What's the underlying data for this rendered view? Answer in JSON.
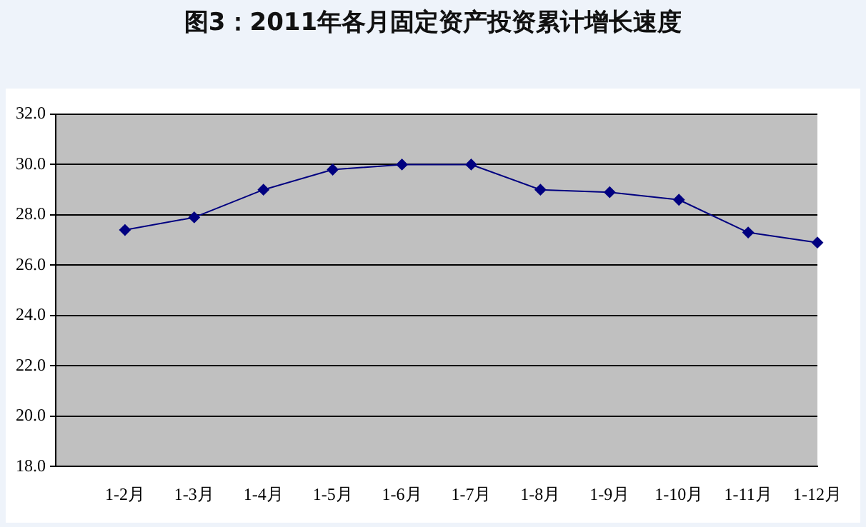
{
  "chart_data": {
    "type": "line",
    "title": "图3：2011年各月固定资产投资累计增长速度",
    "categories": [
      null,
      "1-2月",
      "1-3月",
      "1-4月",
      "1-5月",
      "1-6月",
      "1-7月",
      "1-8月",
      "1-9月",
      "1-10月",
      "1-11月",
      "1-12月"
    ],
    "series": [
      {
        "color": "#000080",
        "values": [
          null,
          27.4,
          27.9,
          29.0,
          29.8,
          30.0,
          30.0,
          29.0,
          28.9,
          28.6,
          27.3,
          26.9
        ]
      }
    ],
    "ylim": [
      18,
      32
    ],
    "yticks": [
      {
        "value": 18,
        "label": "18.0"
      },
      {
        "value": 20,
        "label": "20.0"
      },
      {
        "value": 22,
        "label": "22.0"
      },
      {
        "value": 24,
        "label": "24.0"
      },
      {
        "value": 26,
        "label": "26.0"
      },
      {
        "value": 28,
        "label": "28.0"
      },
      {
        "value": 30,
        "label": "30.0"
      },
      {
        "value": 32,
        "label": "32.0"
      }
    ],
    "grid": "y",
    "marker": "diamond",
    "line_style": "solid",
    "legend": false
  }
}
